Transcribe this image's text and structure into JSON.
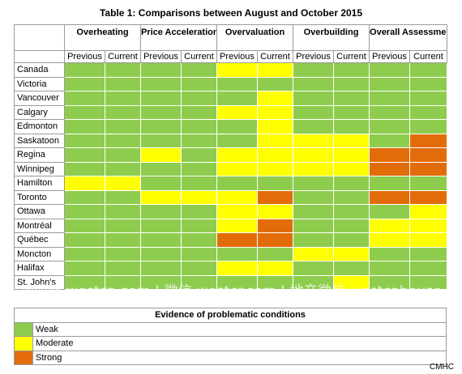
{
  "title": "Table 1: Comparisons between August and October 2015",
  "colors": {
    "weak": "#8ecc4e",
    "moderate": "#ffff00",
    "strong": "#e36c0a"
  },
  "groups": [
    "Overheating",
    "Price Acceleration",
    "Overvaluation",
    "Overbuilding",
    "Overall Assessment"
  ],
  "sub_previous": "Previous",
  "sub_current": "Current",
  "rows": [
    {
      "city": "Canada",
      "cells": [
        "weak",
        "weak",
        "weak",
        "weak",
        "moderate",
        "moderate",
        "weak",
        "weak",
        "weak",
        "weak"
      ]
    },
    {
      "city": "Victoria",
      "cells": [
        "weak",
        "weak",
        "weak",
        "weak",
        "weak",
        "weak",
        "weak",
        "weak",
        "weak",
        "weak"
      ]
    },
    {
      "city": "Vancouver",
      "cells": [
        "weak",
        "weak",
        "weak",
        "weak",
        "weak",
        "moderate",
        "weak",
        "weak",
        "weak",
        "weak"
      ]
    },
    {
      "city": "Calgary",
      "cells": [
        "weak",
        "weak",
        "weak",
        "weak",
        "moderate",
        "moderate",
        "weak",
        "weak",
        "weak",
        "weak"
      ]
    },
    {
      "city": "Edmonton",
      "cells": [
        "weak",
        "weak",
        "weak",
        "weak",
        "weak",
        "moderate",
        "weak",
        "weak",
        "weak",
        "weak"
      ]
    },
    {
      "city": "Saskatoon",
      "cells": [
        "weak",
        "weak",
        "weak",
        "weak",
        "weak",
        "moderate",
        "moderate",
        "moderate",
        "weak",
        "strong"
      ]
    },
    {
      "city": "Regina",
      "cells": [
        "weak",
        "weak",
        "moderate",
        "weak",
        "moderate",
        "moderate",
        "moderate",
        "moderate",
        "strong",
        "strong"
      ]
    },
    {
      "city": "Winnipeg",
      "cells": [
        "weak",
        "weak",
        "weak",
        "weak",
        "moderate",
        "moderate",
        "moderate",
        "moderate",
        "strong",
        "strong"
      ]
    },
    {
      "city": "Hamilton",
      "cells": [
        "moderate",
        "moderate",
        "weak",
        "weak",
        "weak",
        "weak",
        "weak",
        "weak",
        "weak",
        "weak"
      ]
    },
    {
      "city": "Toronto",
      "cells": [
        "weak",
        "weak",
        "moderate",
        "moderate",
        "moderate",
        "strong",
        "weak",
        "weak",
        "strong",
        "strong"
      ]
    },
    {
      "city": "Ottawa",
      "cells": [
        "weak",
        "weak",
        "weak",
        "weak",
        "moderate",
        "moderate",
        "weak",
        "weak",
        "weak",
        "moderate"
      ]
    },
    {
      "city": "Montréal",
      "cells": [
        "weak",
        "weak",
        "weak",
        "weak",
        "moderate",
        "strong",
        "weak",
        "weak",
        "moderate",
        "moderate"
      ]
    },
    {
      "city": "Québec",
      "cells": [
        "weak",
        "weak",
        "weak",
        "weak",
        "strong",
        "strong",
        "weak",
        "weak",
        "moderate",
        "moderate"
      ]
    },
    {
      "city": "Moncton",
      "cells": [
        "weak",
        "weak",
        "weak",
        "weak",
        "weak",
        "weak",
        "moderate",
        "moderate",
        "weak",
        "weak"
      ]
    },
    {
      "city": "Halifax",
      "cells": [
        "weak",
        "weak",
        "weak",
        "weak",
        "moderate",
        "moderate",
        "weak",
        "weak",
        "weak",
        "weak"
      ]
    },
    {
      "city": "St. John's",
      "cells": [
        "weak",
        "weak",
        "weak",
        "weak",
        "weak",
        "weak",
        "weak",
        "moderate",
        "weak",
        "weak"
      ]
    }
  ],
  "legend": {
    "title": "Evidence of problematic conditions",
    "items": [
      {
        "label": "Weak",
        "level": "weak"
      },
      {
        "label": "Moderate",
        "level": "moderate"
      },
      {
        "label": "Strong",
        "level": "strong"
      }
    ]
  },
  "watermark": "加西网 westca.com | 微信 westcacom | 地产微信 westcahouse",
  "source": "CMHC"
}
